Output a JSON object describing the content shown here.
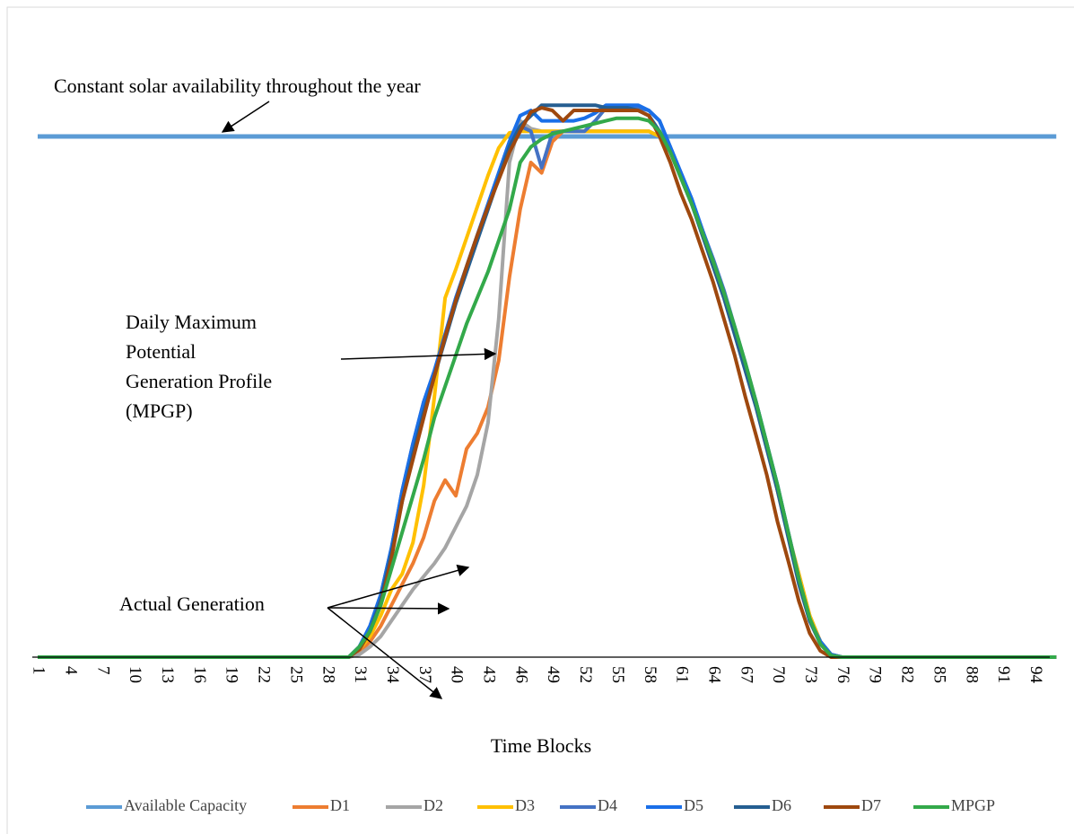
{
  "chart_data": {
    "type": "line",
    "x_label": "Time Blocks",
    "annotations": [
      {
        "text": "Constant solar availability  throughout the year"
      },
      {
        "lines": [
          "Daily Maximum",
          "Potential",
          "Generation Profile",
          "(MPGP)"
        ]
      },
      {
        "text": "Actual Generation"
      }
    ],
    "categories": [
      1,
      null,
      null,
      4,
      null,
      null,
      7,
      null,
      null,
      10,
      null,
      null,
      13,
      null,
      null,
      16,
      null,
      null,
      19,
      null,
      null,
      22,
      null,
      null,
      25,
      null,
      null,
      28,
      null,
      null,
      31,
      null,
      null,
      34,
      null,
      null,
      37,
      null,
      null,
      40,
      null,
      null,
      43,
      null,
      null,
      46,
      null,
      null,
      49,
      null,
      null,
      52,
      null,
      null,
      55,
      null,
      null,
      58,
      null,
      null,
      61,
      null,
      null,
      64,
      null,
      null,
      67,
      null,
      null,
      70,
      null,
      null,
      73,
      null,
      null,
      76,
      null,
      null,
      79,
      null,
      null,
      82,
      null,
      null,
      85,
      null,
      null,
      88,
      null,
      null,
      91,
      null,
      null,
      94,
      null,
      null
    ],
    "ylim": [
      0,
      120
    ],
    "legend": "bottom",
    "series": [
      {
        "name": "Available Capacity",
        "color": "#5b9bd5",
        "values": [
          100,
          100,
          100,
          100,
          100,
          100,
          100,
          100,
          100,
          100,
          100,
          100,
          100,
          100,
          100,
          100,
          100,
          100,
          100,
          100,
          100,
          100,
          100,
          100,
          100,
          100,
          100,
          100,
          100,
          100,
          100,
          100,
          100,
          100,
          100,
          100,
          100,
          100,
          100,
          100,
          100,
          100,
          100,
          100,
          100,
          100,
          100,
          100,
          100,
          100,
          100,
          100,
          100,
          100,
          100,
          100,
          100,
          100,
          100,
          100,
          100,
          100,
          100,
          100,
          100,
          100,
          100,
          100,
          100,
          100,
          100,
          100,
          100,
          100,
          100,
          100,
          100,
          100,
          100,
          100,
          100,
          100,
          100,
          100,
          100,
          100,
          100,
          100,
          100,
          100,
          100,
          100,
          100,
          100,
          100,
          100
        ]
      },
      {
        "name": "D1",
        "color": "#ed7d31",
        "values": [
          0,
          0,
          0,
          0,
          0,
          0,
          0,
          0,
          0,
          0,
          0,
          0,
          0,
          0,
          0,
          0,
          0,
          0,
          0,
          0,
          0,
          0,
          0,
          0,
          0,
          0,
          0,
          0,
          0,
          0,
          1,
          3,
          6,
          10,
          14,
          18,
          23,
          30,
          34,
          31,
          40,
          43,
          48,
          57,
          73,
          86,
          95,
          93,
          99,
          101,
          101,
          101,
          101,
          101,
          101,
          101,
          101,
          101,
          100,
          97.8,
          92.6,
          87.4,
          82,
          76,
          70,
          63,
          56,
          48.6,
          41,
          32,
          23.6,
          15.9,
          8,
          3,
          0.5,
          0,
          0,
          0,
          0,
          0,
          0,
          0,
          0,
          0,
          0,
          0,
          0,
          0,
          0,
          0,
          0,
          0,
          0,
          0,
          0,
          0
        ]
      },
      {
        "name": "D2",
        "color": "#a5a5a5",
        "values": [
          0,
          0,
          0,
          0,
          0,
          0,
          0,
          0,
          0,
          0,
          0,
          0,
          0,
          0,
          0,
          0,
          0,
          0,
          0,
          0,
          0,
          0,
          0,
          0,
          0,
          0,
          0,
          0,
          0,
          0,
          0.5,
          2,
          4,
          7,
          10,
          13,
          15.5,
          18,
          21,
          25,
          29,
          35,
          45,
          65,
          95,
          103,
          101.5,
          101,
          101,
          101,
          101,
          101,
          101,
          101,
          101,
          101,
          101,
          101,
          100,
          97,
          92,
          87,
          81.5,
          76,
          70,
          63,
          56,
          48.5,
          41,
          32.5,
          24,
          15.5,
          8,
          3,
          0.5,
          0,
          0,
          0,
          0,
          0,
          0,
          0,
          0,
          0,
          0,
          0,
          0,
          0,
          0,
          0,
          0,
          0,
          0,
          0,
          0,
          0
        ]
      },
      {
        "name": "D3",
        "color": "#ffc000",
        "values": [
          0,
          0,
          0,
          0,
          0,
          0,
          0,
          0,
          0,
          0,
          0,
          0,
          0,
          0,
          0,
          0,
          0,
          0,
          0,
          0,
          0,
          0,
          0,
          0,
          0,
          0,
          0,
          0,
          0,
          0,
          1.5,
          4,
          8,
          13,
          16,
          22,
          33,
          50,
          69,
          74.5,
          80.5,
          86.5,
          92.5,
          97.8,
          100.7,
          101,
          101,
          101,
          101,
          101,
          101,
          101,
          101,
          101,
          101,
          101,
          101,
          101,
          100,
          97.8,
          92.6,
          87.4,
          82,
          76,
          70,
          63,
          56,
          48.6,
          41,
          32,
          23.6,
          15.9,
          8,
          3,
          0.5,
          0,
          0,
          0,
          0,
          0,
          0,
          0,
          0,
          0,
          0,
          0,
          0,
          0,
          0,
          0,
          0,
          0,
          0,
          0,
          0,
          0
        ]
      },
      {
        "name": "D4",
        "color": "#4472c4",
        "values": [
          0,
          0,
          0,
          0,
          0,
          0,
          0,
          0,
          0,
          0,
          0,
          0,
          0,
          0,
          0,
          0,
          0,
          0,
          0,
          0,
          0,
          0,
          0,
          0,
          0,
          0,
          0,
          0,
          0,
          0,
          2,
          6,
          12,
          21,
          32,
          41,
          49,
          55,
          62,
          69,
          75,
          81,
          87,
          93,
          99,
          102,
          101,
          94,
          100.7,
          101,
          101,
          101,
          103,
          105.5,
          105.5,
          105.5,
          105.5,
          105,
          103,
          98,
          93,
          88,
          82,
          76.5,
          70.5,
          63.5,
          56.5,
          49,
          41,
          33,
          24,
          15,
          7,
          3,
          0.5,
          0,
          0,
          0,
          0,
          0,
          0,
          0,
          0,
          0,
          0,
          0,
          0,
          0,
          0,
          0,
          0,
          0,
          0,
          0,
          0,
          0
        ]
      },
      {
        "name": "D5",
        "color": "#1a6fe8",
        "values": [
          0,
          0,
          0,
          0,
          0,
          0,
          0,
          0,
          0,
          0,
          0,
          0,
          0,
          0,
          0,
          0,
          0,
          0,
          0,
          0,
          0,
          0,
          0,
          0,
          0,
          0,
          0,
          0,
          0,
          0,
          2,
          6,
          12,
          21,
          32,
          41,
          49,
          55,
          62,
          69,
          75,
          81,
          87,
          93,
          99,
          104,
          105,
          103,
          103,
          103,
          103,
          103.5,
          104.5,
          106,
          106,
          106,
          106,
          105,
          103,
          98,
          93,
          88,
          82,
          76,
          70,
          63,
          56,
          49,
          41,
          33,
          24,
          15,
          7,
          3,
          0.5,
          0,
          0,
          0,
          0,
          0,
          0,
          0,
          0,
          0,
          0,
          0,
          0,
          0,
          0,
          0,
          0,
          0,
          0,
          0,
          0,
          0
        ]
      },
      {
        "name": "D6",
        "color": "#255e91",
        "values": [
          0,
          0,
          0,
          0,
          0,
          0,
          0,
          0,
          0,
          0,
          0,
          0,
          0,
          0,
          0,
          0,
          0,
          0,
          0,
          0,
          0,
          0,
          0,
          0,
          0,
          0,
          0,
          0,
          0,
          0,
          1.5,
          5,
          11,
          20,
          30,
          39,
          47,
          54,
          61,
          68,
          74,
          80,
          86,
          92,
          98,
          102,
          104,
          106,
          106,
          106,
          106,
          106,
          106,
          105.5,
          105.5,
          105.5,
          105,
          104,
          101,
          97,
          92,
          87,
          81,
          75,
          69,
          62,
          55,
          48,
          40,
          32,
          23,
          14,
          7,
          2.5,
          0.3,
          0,
          0,
          0,
          0,
          0,
          0,
          0,
          0,
          0,
          0,
          0,
          0,
          0,
          0,
          0,
          0,
          0,
          0,
          0,
          0,
          0
        ]
      },
      {
        "name": "D7",
        "color": "#9e480e",
        "values": [
          0,
          0,
          0,
          0,
          0,
          0,
          0,
          0,
          0,
          0,
          0,
          0,
          0,
          0,
          0,
          0,
          0,
          0,
          0,
          0,
          0,
          0,
          0,
          0,
          0,
          0,
          0,
          0,
          0,
          0,
          1.5,
          5,
          10,
          19,
          30,
          38,
          46,
          54,
          61.5,
          68.5,
          75,
          81,
          86.5,
          91.7,
          97,
          101,
          104.7,
          105.5,
          105,
          103,
          105,
          105,
          105,
          105,
          105,
          105,
          105,
          104,
          100,
          95,
          89,
          84,
          78,
          72,
          65,
          58,
          50,
          42.6,
          35,
          26,
          18.5,
          10.7,
          4.6,
          1.2,
          0,
          0,
          0,
          0,
          0,
          0,
          0,
          0,
          0,
          0,
          0,
          0,
          0,
          0,
          0,
          0,
          0,
          0,
          0,
          0,
          0,
          0
        ]
      },
      {
        "name": "MPGP",
        "color": "#33a94a",
        "values": [
          0,
          0,
          0,
          0,
          0,
          0,
          0,
          0,
          0,
          0,
          0,
          0,
          0,
          0,
          0,
          0,
          0,
          0,
          0,
          0,
          0,
          0,
          0,
          0,
          0,
          0,
          0,
          0,
          0,
          0,
          2,
          5,
          10,
          17,
          24,
          31,
          38,
          46,
          52,
          58,
          64,
          69,
          74,
          80,
          86,
          95,
          98,
          99.5,
          100.5,
          101,
          101.5,
          102,
          102.5,
          103,
          103.5,
          103.5,
          103.5,
          103,
          101,
          97,
          92,
          87,
          81.5,
          76,
          70,
          63.5,
          56.5,
          49,
          41,
          33,
          24,
          15,
          7.5,
          2.5,
          0.3,
          0,
          0,
          0,
          0,
          0,
          0,
          0,
          0,
          0,
          0,
          0,
          0,
          0,
          0,
          0,
          0,
          0,
          0,
          0,
          0,
          0
        ]
      }
    ]
  }
}
